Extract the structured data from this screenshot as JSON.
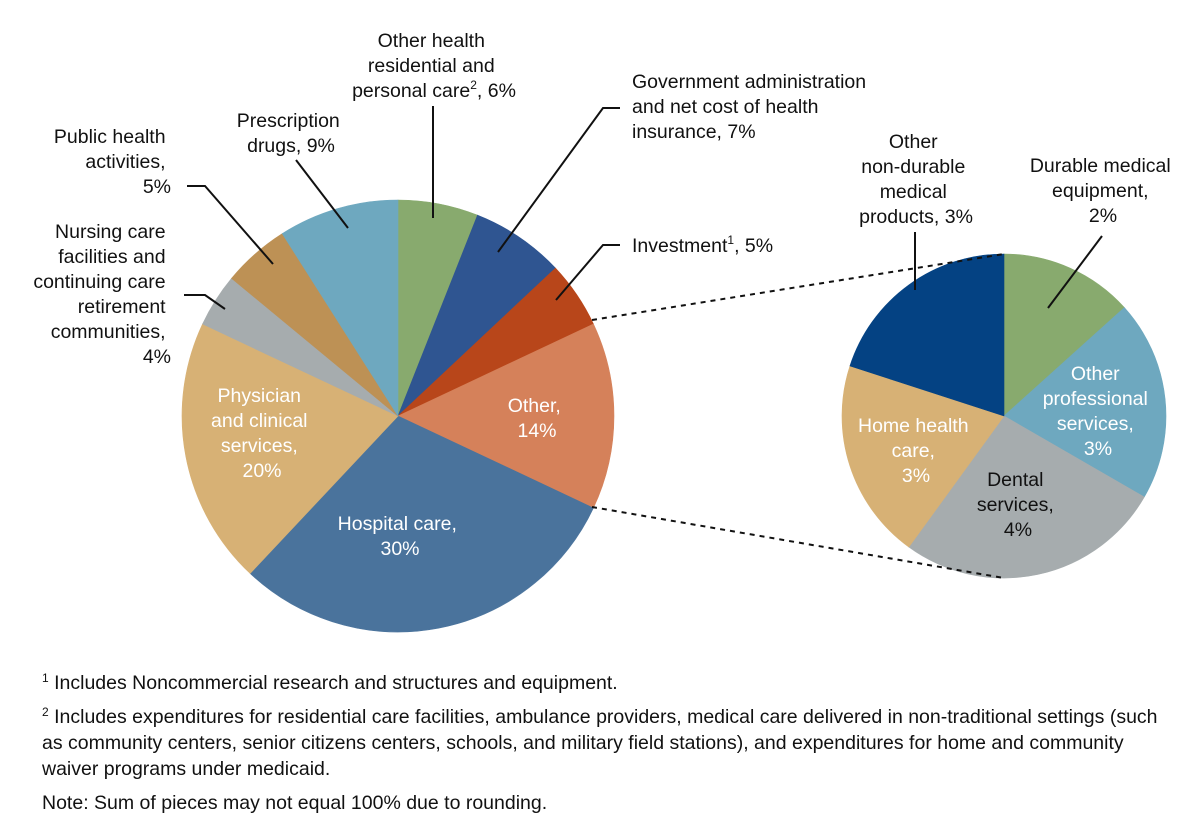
{
  "chart_data": [
    {
      "type": "pie",
      "slices": [
        {
          "label": "Other health residential and personal care",
          "footnote": "2",
          "value": 6,
          "display": "6%",
          "color": "#88aa6e"
        },
        {
          "label": "Government administration and net cost of health insurance",
          "value": 7,
          "display": "7%",
          "color": "#2f5591"
        },
        {
          "label": "Investment",
          "footnote": "1",
          "value": 5,
          "display": "5%",
          "color": "#b8461a"
        },
        {
          "label": "Other",
          "value": 14,
          "display": "14%",
          "color": "#d5815a"
        },
        {
          "label": "Hospital care",
          "value": 30,
          "display": "30%",
          "color": "#4a739c"
        },
        {
          "label": "Physician and clinical services",
          "value": 20,
          "display": "20%",
          "color": "#d7b175"
        },
        {
          "label": "Nursing care facilities and continuing care retirement communities",
          "value": 4,
          "display": "4%",
          "color": "#a6acae"
        },
        {
          "label": "Public health activities",
          "value": 5,
          "display": "5%",
          "color": "#bd9155"
        },
        {
          "label": "Prescription drugs",
          "value": 9,
          "display": "9%",
          "color": "#6ea8bf"
        }
      ]
    },
    {
      "type": "pie",
      "breakdown_of": "Other",
      "slices": [
        {
          "label": "Durable medical equipment",
          "value": 2,
          "display": "2%",
          "color": "#88aa6e"
        },
        {
          "label": "Other professional services",
          "value": 3,
          "display": "3%",
          "color": "#6ea8bf"
        },
        {
          "label": "Dental services",
          "value": 4,
          "display": "4%",
          "color": "#a6acae"
        },
        {
          "label": "Home health care",
          "value": 3,
          "display": "3%",
          "color": "#d7b175"
        },
        {
          "label": "Other non-durable medical products",
          "value": 3,
          "display": "3%",
          "color": "#044283"
        }
      ]
    }
  ],
  "labels": {
    "other_residential": [
      "Other health",
      "residential and",
      "personal care",
      "2",
      ", 6%"
    ],
    "gov_admin": [
      "Government administration",
      "and net cost of health",
      "insurance, 7%"
    ],
    "investment": [
      "Investment",
      "1",
      ", 5%"
    ],
    "other": [
      "Other,",
      "14%"
    ],
    "hospital": [
      "Hospital care,",
      "30%"
    ],
    "physician": [
      "Physician",
      "and clinical",
      "services,",
      "20%"
    ],
    "nursing": [
      "Nursing care",
      "facilities and",
      "continuing care",
      "retirement",
      "communities,",
      "4%"
    ],
    "public_health": [
      "Public health",
      "activities,",
      "5%"
    ],
    "prescription": [
      "Prescription",
      "drugs, 9%"
    ],
    "dme": [
      "Durable medical",
      "equipment,",
      "2%"
    ],
    "other_prof": [
      "Other",
      "professional",
      "services,",
      "3%"
    ],
    "dental": [
      "Dental",
      "services,",
      "4%"
    ],
    "home_health": [
      "Home health",
      "care,",
      "3%"
    ],
    "other_nondurable": [
      "Other",
      "non-durable",
      "medical",
      "products, 3%"
    ]
  },
  "footnotes": {
    "n1_mark": "1",
    "n1_text": "Includes Noncommercial research and structures and equipment.",
    "n2_mark": "2",
    "n2_text": "Includes expenditures for residential care facilities, ambulance providers, medical care delivered in non-traditional settings (such as community centers, senior citizens centers, schools, and military field stations), and expenditures for home and community waiver programs under medicaid.",
    "note": "Note: Sum of pieces may not equal 100% due to rounding."
  }
}
